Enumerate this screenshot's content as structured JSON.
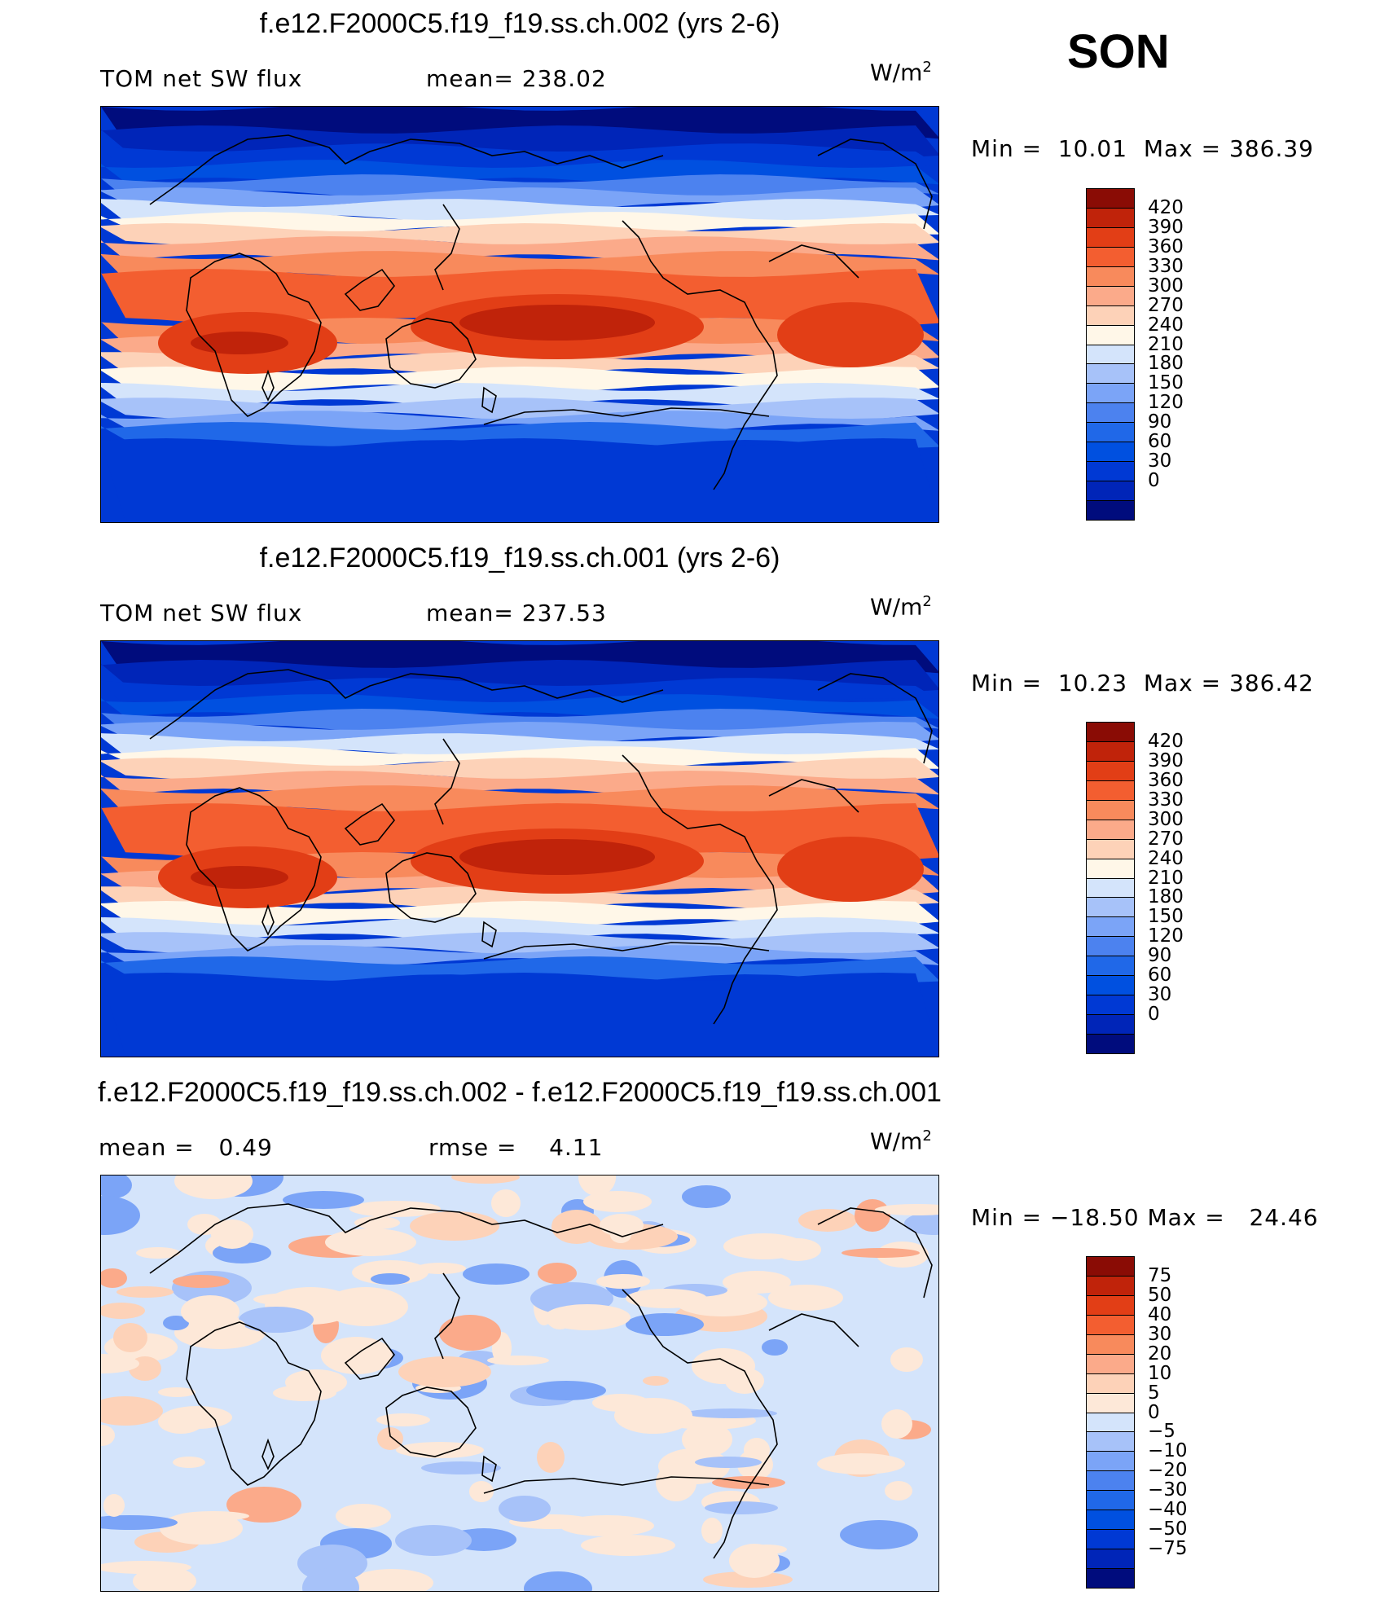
{
  "season": "SON",
  "colors": {
    "abs_scale": [
      "#000c7d",
      "#0025b8",
      "#0039d4",
      "#0050e0",
      "#2068e8",
      "#4c82ef",
      "#7ba4f7",
      "#a7c2f9",
      "#d4e4fb",
      "#fff7e8",
      "#fdd2b8",
      "#fbaa8a",
      "#f88a5c",
      "#f35e30",
      "#e23e16",
      "#c0230a",
      "#8a0c05"
    ],
    "diff_scale": [
      "#000c7d",
      "#0025b8",
      "#0039d4",
      "#0050e0",
      "#2068e8",
      "#4c82ef",
      "#7ba4f7",
      "#a7c2f9",
      "#d4e4fb",
      "#fde8d8",
      "#fdd2b8",
      "#fbaa8a",
      "#f88a5c",
      "#f35e30",
      "#e23e16",
      "#c0230a",
      "#8a0c05"
    ]
  },
  "chart_data": [
    {
      "type": "heatmap",
      "title": "f.e12.F2000C5.f19_f19.ss.ch.002 (yrs 2-6)",
      "left_label": "TOM net SW flux",
      "stat1_label": "mean=",
      "stat1_value": "238.02",
      "unit_base": "W/m",
      "unit_exp": "2",
      "min_label": "Min =",
      "min_value": "10.01",
      "max_label": "Max =",
      "max_value": "386.39",
      "levels": [
        "420",
        "390",
        "360",
        "330",
        "300",
        "270",
        "240",
        "210",
        "180",
        "150",
        "120",
        "90",
        "60",
        "30",
        "0"
      ]
    },
    {
      "type": "heatmap",
      "title": "f.e12.F2000C5.f19_f19.ss.ch.001 (yrs 2-6)",
      "left_label": "TOM net SW flux",
      "stat1_label": "mean=",
      "stat1_value": "237.53",
      "unit_base": "W/m",
      "unit_exp": "2",
      "min_label": "Min =",
      "min_value": "10.23",
      "max_label": "Max =",
      "max_value": "386.42",
      "levels": [
        "420",
        "390",
        "360",
        "330",
        "300",
        "270",
        "240",
        "210",
        "180",
        "150",
        "120",
        "90",
        "60",
        "30",
        "0"
      ]
    },
    {
      "type": "heatmap",
      "title": "f.e12.F2000C5.f19_f19.ss.ch.002 - f.e12.F2000C5.f19_f19.ss.ch.001",
      "stat1_label": "mean =",
      "stat1_value": "0.49",
      "stat2_label": "rmse =",
      "stat2_value": "4.11",
      "unit_base": "W/m",
      "unit_exp": "2",
      "min_label": "Min =",
      "min_value": "−18.50",
      "max_label": "Max =",
      "max_value": "24.46",
      "levels": [
        "75",
        "50",
        "40",
        "30",
        "20",
        "10",
        "5",
        "0",
        "−5",
        "−10",
        "−20",
        "−30",
        "−40",
        "−50",
        "−75"
      ]
    }
  ]
}
